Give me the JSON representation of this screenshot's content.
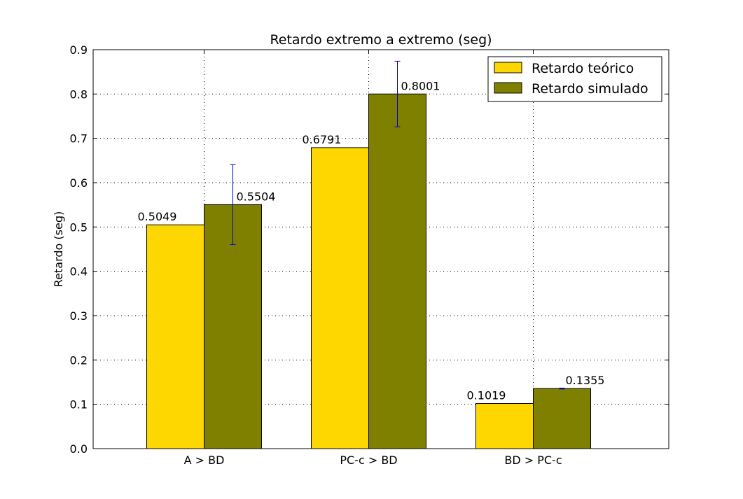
{
  "chart_data": {
    "type": "bar",
    "title": "Retardo extremo a extremo (seg)",
    "xlabel": "",
    "ylabel": "Retardo (seg)",
    "categories": [
      "A > BD",
      "PC-c > BD",
      "BD > PC-c"
    ],
    "ylim": [
      0,
      0.9
    ],
    "yticks": [
      "0.0",
      "0.1",
      "0.2",
      "0.3",
      "0.4",
      "0.5",
      "0.6",
      "0.7",
      "0.8",
      "0.9"
    ],
    "grid": true,
    "legend_position": "top-right",
    "series": [
      {
        "name": "Retardo teórico",
        "color": "#FFD700",
        "values": [
          0.5049,
          0.6791,
          0.1019
        ],
        "labels": [
          "0.5049",
          "0.6791",
          "0.1019"
        ]
      },
      {
        "name": "Retardo simulado",
        "color": "#808000",
        "values": [
          0.5504,
          0.8001,
          0.1355
        ],
        "labels": [
          "0.5504",
          "0.8001",
          "0.1355"
        ],
        "error": [
          0.09,
          0.074,
          0.001
        ],
        "error_color": "#0000cc"
      }
    ]
  }
}
